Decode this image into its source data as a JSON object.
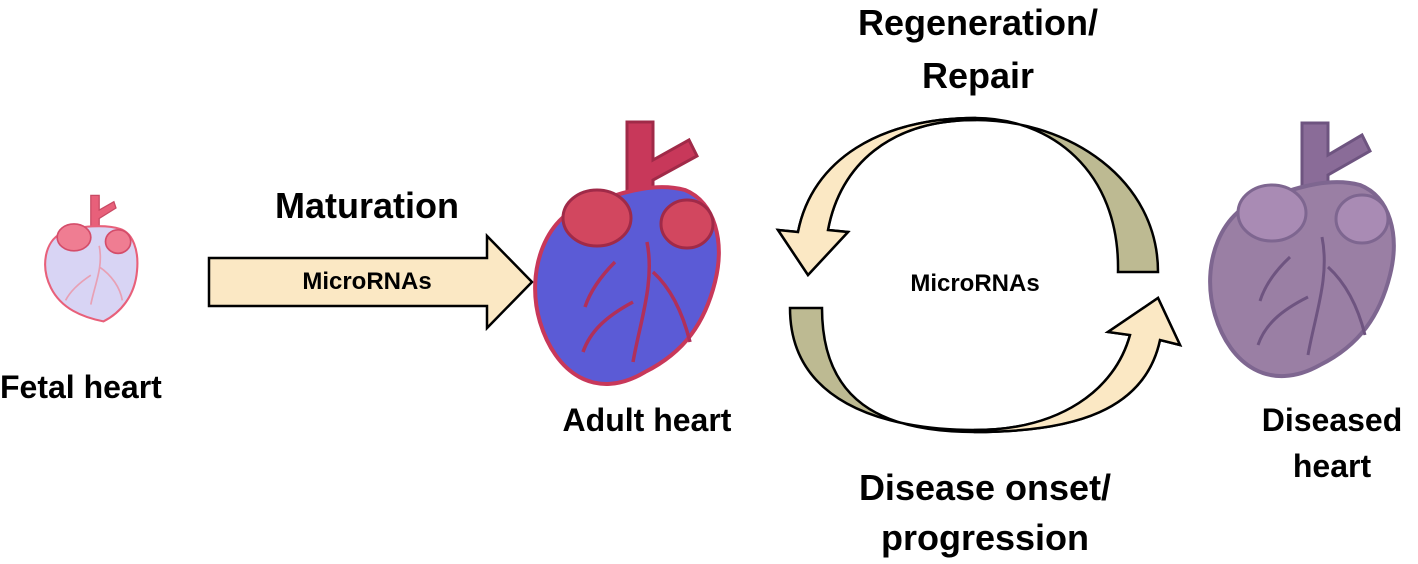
{
  "labels": {
    "fetal_heart": "Fetal heart",
    "adult_heart": "Adult heart",
    "diseased_heart_line1": "Diseased",
    "diseased_heart_line2": "heart",
    "maturation": "Maturation",
    "maturation_arrow_text": "MicroRNAs",
    "cycle_center_text": "MicroRNAs",
    "regeneration_line1": "Regeneration/",
    "regeneration_line2": "Repair",
    "disease_line1": "Disease onset/",
    "disease_line2": "progression"
  },
  "colors": {
    "fetal_heart_body": "#d8d4f4",
    "fetal_heart_accent": "#e8607a",
    "adult_heart_body": "#5b5bd6",
    "adult_heart_accent": "#c8385a",
    "adult_heart_vessels": "#b0305a",
    "diseased_heart_body": "#9a7fa4",
    "diseased_heart_accent": "#7e6690",
    "arrow_light": "#fbe8c4",
    "arrow_olive": "#bdba92",
    "outline": "#000000"
  },
  "icons": {
    "fetal": "fetal-heart-icon",
    "adult": "adult-heart-icon",
    "diseased": "diseased-heart-icon"
  }
}
